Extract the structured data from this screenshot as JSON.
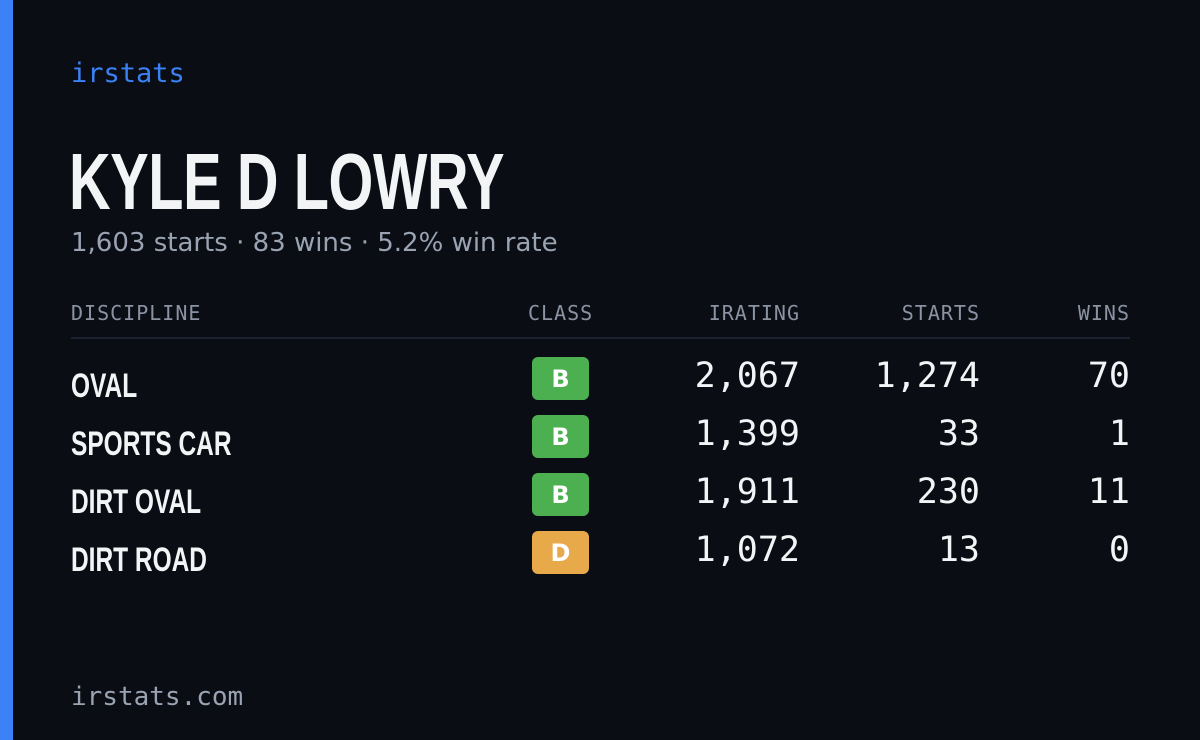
{
  "brand": "irstats",
  "driver": {
    "name": "KYLE D LOWRY",
    "summary": "1,603 starts · 83 wins · 5.2% win rate"
  },
  "table": {
    "headers": {
      "discipline": "DISCIPLINE",
      "class": "CLASS",
      "irating": "IRATING",
      "starts": "STARTS",
      "wins": "WINS"
    },
    "rows": [
      {
        "discipline": "OVAL",
        "class": "B",
        "class_color": "#4caf50",
        "irating": "2,067",
        "starts": "1,274",
        "wins": "70"
      },
      {
        "discipline": "SPORTS CAR",
        "class": "B",
        "class_color": "#4caf50",
        "irating": "1,399",
        "starts": "33",
        "wins": "1"
      },
      {
        "discipline": "DIRT OVAL",
        "class": "B",
        "class_color": "#4caf50",
        "irating": "1,911",
        "starts": "230",
        "wins": "11"
      },
      {
        "discipline": "DIRT ROAD",
        "class": "D",
        "class_color": "#e8a94a",
        "irating": "1,072",
        "starts": "13",
        "wins": "0"
      }
    ]
  },
  "footer": "irstats.com",
  "colors": {
    "accent": "#3b82f6",
    "background": "#0a0d14",
    "class_b": "#4caf50",
    "class_d": "#e8a94a"
  }
}
